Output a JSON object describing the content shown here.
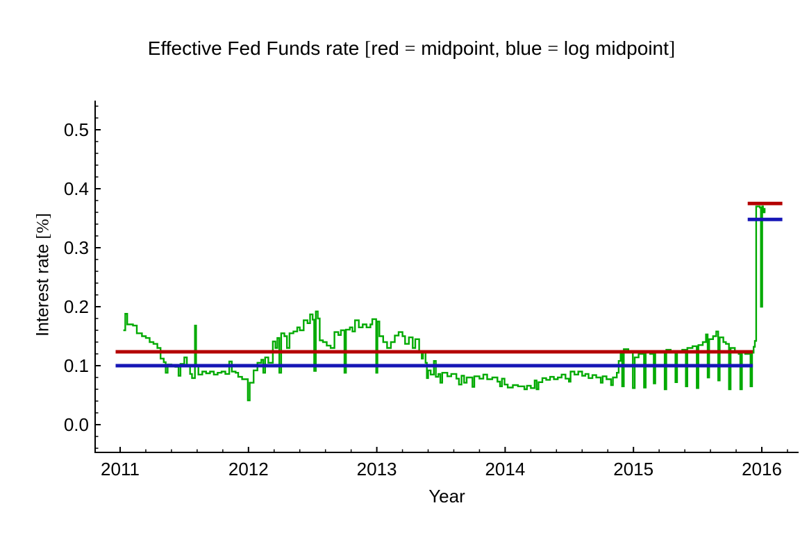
{
  "title": "Effective Fed Funds rate [red = midpoint, blue = log midpoint]",
  "chart_data": {
    "type": "line",
    "title": "Effective Fed Funds rate [red = midpoint, blue = log midpoint]",
    "xlabel": "Year",
    "ylabel": "Interest rate [%]",
    "xlim": [
      2010.8,
      2016.29
    ],
    "ylim": [
      -0.047,
      0.55
    ],
    "grid": false,
    "legend_position": "in-title",
    "legend": [
      {
        "label": "Effective Fed Funds rate (daily)",
        "color": "#00AA00"
      },
      {
        "label": "midpoint",
        "color": "#B40000"
      },
      {
        "label": "log midpoint",
        "color": "#1616B6"
      }
    ],
    "x_ticks": {
      "values": [
        2011,
        2012,
        2013,
        2014,
        2015,
        2016
      ],
      "labels": [
        "2011",
        "2012",
        "2013",
        "2014",
        "2015",
        "2016"
      ],
      "minor_step": 0.2
    },
    "y_ticks": {
      "values": [
        0.0,
        0.1,
        0.2,
        0.3,
        0.4,
        0.5
      ],
      "labels": [
        "0.0",
        "0.1",
        "0.2",
        "0.3",
        "0.4",
        "0.5"
      ],
      "minor_step": 0.02
    },
    "colors": {
      "series": "#00AA00",
      "midpoint": "#B40000",
      "log_midpoint": "#1616B6",
      "axes": "#000000"
    },
    "reference_lines": [
      {
        "name": "midpoint-pre-liftoff",
        "color_key": "midpoint",
        "value": 0.1235,
        "x_start": 2010.965,
        "x_end": 2015.93
      },
      {
        "name": "midpoint-post-liftoff",
        "color_key": "midpoint",
        "value": 0.375,
        "x_start": 2015.89,
        "x_end": 2016.16
      },
      {
        "name": "log-midpoint-pre-liftoff",
        "color_key": "log_midpoint",
        "value": 0.1,
        "x_start": 2010.965,
        "x_end": 2015.93
      },
      {
        "name": "log-midpoint-post-liftoff",
        "color_key": "log_midpoint",
        "value": 0.348,
        "x_start": 2015.89,
        "x_end": 2016.16
      }
    ],
    "series": [
      {
        "name": "effective-fed-funds-rate",
        "style": "step",
        "color_key": "series",
        "points": [
          [
            2011.025,
            0.16
          ],
          [
            2011.04,
            0.188
          ],
          [
            2011.055,
            0.17
          ],
          [
            2011.1,
            0.168
          ],
          [
            2011.13,
            0.155
          ],
          [
            2011.17,
            0.15
          ],
          [
            2011.2,
            0.147
          ],
          [
            2011.23,
            0.14
          ],
          [
            2011.26,
            0.137
          ],
          [
            2011.29,
            0.13
          ],
          [
            2011.315,
            0.112
          ],
          [
            2011.34,
            0.106
          ],
          [
            2011.355,
            0.088
          ],
          [
            2011.37,
            0.102
          ],
          [
            2011.4,
            0.1
          ],
          [
            2011.43,
            0.098
          ],
          [
            2011.455,
            0.083
          ],
          [
            2011.47,
            0.103
          ],
          [
            2011.5,
            0.114
          ],
          [
            2011.52,
            0.1
          ],
          [
            2011.545,
            0.086
          ],
          [
            2011.56,
            0.079
          ],
          [
            2011.583,
            0.168
          ],
          [
            2011.592,
            0.1
          ],
          [
            2011.61,
            0.085
          ],
          [
            2011.64,
            0.09
          ],
          [
            2011.67,
            0.087
          ],
          [
            2011.7,
            0.09
          ],
          [
            2011.73,
            0.085
          ],
          [
            2011.76,
            0.088
          ],
          [
            2011.79,
            0.09
          ],
          [
            2011.82,
            0.086
          ],
          [
            2011.85,
            0.107
          ],
          [
            2011.87,
            0.09
          ],
          [
            2011.9,
            0.088
          ],
          [
            2011.92,
            0.081
          ],
          [
            2011.95,
            0.077
          ],
          [
            2011.995,
            0.041
          ],
          [
            2012.01,
            0.071
          ],
          [
            2012.04,
            0.092
          ],
          [
            2012.07,
            0.105
          ],
          [
            2012.1,
            0.11
          ],
          [
            2012.115,
            0.088
          ],
          [
            2012.13,
            0.114
          ],
          [
            2012.155,
            0.105
          ],
          [
            2012.19,
            0.141
          ],
          [
            2012.21,
            0.13
          ],
          [
            2012.225,
            0.147
          ],
          [
            2012.24,
            0.088
          ],
          [
            2012.255,
            0.155
          ],
          [
            2012.28,
            0.15
          ],
          [
            2012.3,
            0.13
          ],
          [
            2012.32,
            0.155
          ],
          [
            2012.35,
            0.158
          ],
          [
            2012.38,
            0.165
          ],
          [
            2012.4,
            0.16
          ],
          [
            2012.43,
            0.177
          ],
          [
            2012.46,
            0.172
          ],
          [
            2012.48,
            0.187
          ],
          [
            2012.5,
            0.178
          ],
          [
            2012.512,
            0.091
          ],
          [
            2012.525,
            0.192
          ],
          [
            2012.54,
            0.18
          ],
          [
            2012.555,
            0.143
          ],
          [
            2012.58,
            0.14
          ],
          [
            2012.61,
            0.134
          ],
          [
            2012.64,
            0.13
          ],
          [
            2012.67,
            0.157
          ],
          [
            2012.7,
            0.152
          ],
          [
            2012.72,
            0.16
          ],
          [
            2012.748,
            0.088
          ],
          [
            2012.76,
            0.161
          ],
          [
            2012.79,
            0.165
          ],
          [
            2012.81,
            0.158
          ],
          [
            2012.83,
            0.177
          ],
          [
            2012.86,
            0.165
          ],
          [
            2012.89,
            0.17
          ],
          [
            2012.92,
            0.165
          ],
          [
            2012.95,
            0.17
          ],
          [
            2012.965,
            0.179
          ],
          [
            2012.995,
            0.088
          ],
          [
            2013.005,
            0.175
          ],
          [
            2013.02,
            0.15
          ],
          [
            2013.05,
            0.14
          ],
          [
            2013.08,
            0.13
          ],
          [
            2013.11,
            0.14
          ],
          [
            2013.14,
            0.151
          ],
          [
            2013.17,
            0.157
          ],
          [
            2013.2,
            0.15
          ],
          [
            2013.22,
            0.137
          ],
          [
            2013.25,
            0.148
          ],
          [
            2013.28,
            0.13
          ],
          [
            2013.3,
            0.145
          ],
          [
            2013.33,
            0.125
          ],
          [
            2013.35,
            0.112
          ],
          [
            2013.36,
            0.122
          ],
          [
            2013.38,
            0.105
          ],
          [
            2013.39,
            0.079
          ],
          [
            2013.4,
            0.092
          ],
          [
            2013.42,
            0.085
          ],
          [
            2013.445,
            0.108
          ],
          [
            2013.46,
            0.081
          ],
          [
            2013.48,
            0.086
          ],
          [
            2013.495,
            0.071
          ],
          [
            2013.51,
            0.088
          ],
          [
            2013.55,
            0.082
          ],
          [
            2013.58,
            0.086
          ],
          [
            2013.62,
            0.078
          ],
          [
            2013.64,
            0.068
          ],
          [
            2013.66,
            0.083
          ],
          [
            2013.68,
            0.071
          ],
          [
            2013.7,
            0.08
          ],
          [
            2013.745,
            0.064
          ],
          [
            2013.76,
            0.082
          ],
          [
            2013.8,
            0.078
          ],
          [
            2013.83,
            0.085
          ],
          [
            2013.86,
            0.077
          ],
          [
            2013.9,
            0.08
          ],
          [
            2013.94,
            0.073
          ],
          [
            2013.96,
            0.065
          ],
          [
            2013.975,
            0.078
          ],
          [
            2013.995,
            0.068
          ],
          [
            2014.02,
            0.063
          ],
          [
            2014.06,
            0.067
          ],
          [
            2014.1,
            0.065
          ],
          [
            2014.15,
            0.06
          ],
          [
            2014.17,
            0.066
          ],
          [
            2014.2,
            0.062
          ],
          [
            2014.23,
            0.075
          ],
          [
            2014.245,
            0.06
          ],
          [
            2014.26,
            0.072
          ],
          [
            2014.29,
            0.079
          ],
          [
            2014.32,
            0.076
          ],
          [
            2014.35,
            0.081
          ],
          [
            2014.38,
            0.077
          ],
          [
            2014.41,
            0.08
          ],
          [
            2014.44,
            0.085
          ],
          [
            2014.47,
            0.078
          ],
          [
            2014.497,
            0.073
          ],
          [
            2014.51,
            0.09
          ],
          [
            2014.54,
            0.085
          ],
          [
            2014.57,
            0.09
          ],
          [
            2014.6,
            0.083
          ],
          [
            2014.625,
            0.086
          ],
          [
            2014.65,
            0.079
          ],
          [
            2014.68,
            0.084
          ],
          [
            2014.71,
            0.08
          ],
          [
            2014.745,
            0.071
          ],
          [
            2014.76,
            0.082
          ],
          [
            2014.79,
            0.077
          ],
          [
            2014.825,
            0.067
          ],
          [
            2014.84,
            0.08
          ],
          [
            2014.87,
            0.088
          ],
          [
            2014.885,
            0.108
          ],
          [
            2014.9,
            0.12
          ],
          [
            2014.912,
            0.065
          ],
          [
            2014.925,
            0.128
          ],
          [
            2014.96,
            0.125
          ],
          [
            2014.995,
            0.062
          ],
          [
            2015.01,
            0.114
          ],
          [
            2015.04,
            0.12
          ],
          [
            2015.07,
            0.125
          ],
          [
            2015.082,
            0.063
          ],
          [
            2015.095,
            0.124
          ],
          [
            2015.13,
            0.12
          ],
          [
            2015.158,
            0.07
          ],
          [
            2015.17,
            0.122
          ],
          [
            2015.2,
            0.125
          ],
          [
            2015.243,
            0.06
          ],
          [
            2015.256,
            0.127
          ],
          [
            2015.29,
            0.122
          ],
          [
            2015.327,
            0.072
          ],
          [
            2015.34,
            0.124
          ],
          [
            2015.38,
            0.127
          ],
          [
            2015.408,
            0.065
          ],
          [
            2015.42,
            0.13
          ],
          [
            2015.46,
            0.133
          ],
          [
            2015.493,
            0.062
          ],
          [
            2015.506,
            0.135
          ],
          [
            2015.54,
            0.14
          ],
          [
            2015.565,
            0.153
          ],
          [
            2015.578,
            0.08
          ],
          [
            2015.59,
            0.145
          ],
          [
            2015.62,
            0.15
          ],
          [
            2015.645,
            0.158
          ],
          [
            2015.66,
            0.075
          ],
          [
            2015.672,
            0.148
          ],
          [
            2015.7,
            0.14
          ],
          [
            2015.72,
            0.137
          ],
          [
            2015.744,
            0.06
          ],
          [
            2015.757,
            0.13
          ],
          [
            2015.79,
            0.124
          ],
          [
            2015.82,
            0.12
          ],
          [
            2015.832,
            0.06
          ],
          [
            2015.845,
            0.122
          ],
          [
            2015.87,
            0.12
          ],
          [
            2015.912,
            0.065
          ],
          [
            2015.924,
            0.122
          ],
          [
            2015.936,
            0.132
          ],
          [
            2015.946,
            0.142
          ],
          [
            2015.956,
            0.37
          ],
          [
            2015.985,
            0.368
          ],
          [
            2015.993,
            0.2
          ],
          [
            2016.003,
            0.37
          ],
          [
            2016.009,
            0.36
          ],
          [
            2016.014,
            0.366
          ],
          [
            2016.022,
            0.36
          ],
          [
            2016.028,
            0.36
          ]
        ]
      }
    ]
  }
}
